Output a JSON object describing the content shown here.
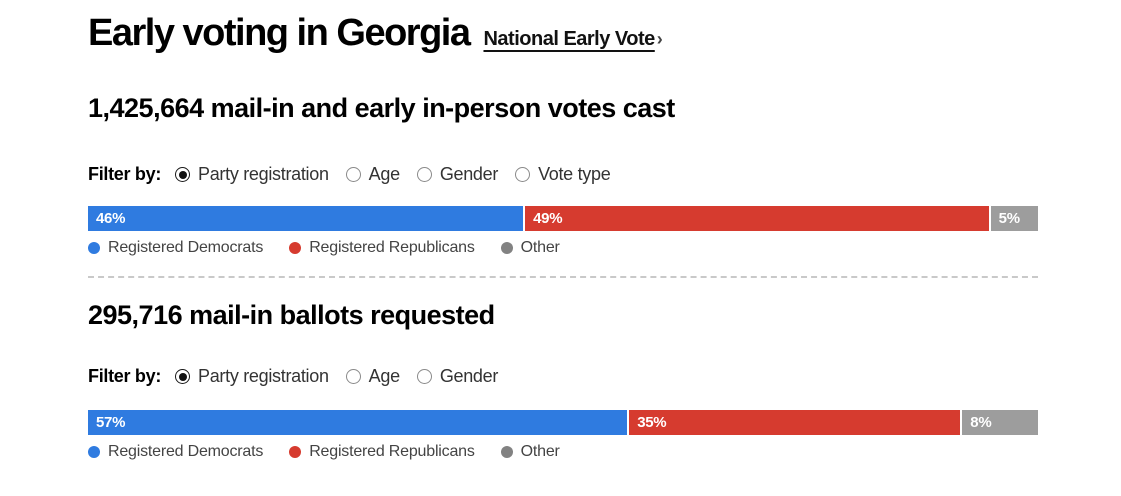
{
  "header": {
    "title": "Early voting in Georgia",
    "link_label": "National Early Vote",
    "link_chevron": "›"
  },
  "colors": {
    "democrat": "#2f7be0",
    "republican": "#d63b2f",
    "other_bar": "#9d9d9d",
    "other_dot": "#828282"
  },
  "sections": [
    {
      "heading": "1,425,664 mail-in and early in-person votes cast",
      "filter": {
        "label": "Filter by:",
        "options": [
          {
            "label": "Party registration",
            "selected": true
          },
          {
            "label": "Age",
            "selected": false
          },
          {
            "label": "Gender",
            "selected": false
          },
          {
            "label": "Vote type",
            "selected": false
          }
        ]
      },
      "bar": {
        "segments": [
          {
            "name": "registered-democrats",
            "label": "46%",
            "value": 46,
            "color": "#2f7be0"
          },
          {
            "name": "registered-republicans",
            "label": "49%",
            "value": 49,
            "color": "#d63b2f"
          },
          {
            "name": "other",
            "label": "5%",
            "value": 5,
            "color": "#9d9d9d"
          }
        ]
      },
      "legend": [
        {
          "label": "Registered Democrats",
          "color": "#2f7be0"
        },
        {
          "label": "Registered Republicans",
          "color": "#d63b2f"
        },
        {
          "label": "Other",
          "color": "#828282"
        }
      ]
    },
    {
      "heading": "295,716 mail-in ballots requested",
      "filter": {
        "label": "Filter by:",
        "options": [
          {
            "label": "Party registration",
            "selected": true
          },
          {
            "label": "Age",
            "selected": false
          },
          {
            "label": "Gender",
            "selected": false
          }
        ]
      },
      "bar": {
        "segments": [
          {
            "name": "registered-democrats",
            "label": "57%",
            "value": 57,
            "color": "#2f7be0"
          },
          {
            "name": "registered-republicans",
            "label": "35%",
            "value": 35,
            "color": "#d63b2f"
          },
          {
            "name": "other",
            "label": "8%",
            "value": 8,
            "color": "#9d9d9d"
          }
        ]
      },
      "legend": [
        {
          "label": "Registered Democrats",
          "color": "#2f7be0"
        },
        {
          "label": "Registered Republicans",
          "color": "#d63b2f"
        },
        {
          "label": "Other",
          "color": "#828282"
        }
      ]
    }
  ],
  "chart_data": [
    {
      "type": "bar",
      "stacked": true,
      "orientation": "horizontal",
      "title": "1,425,664 mail-in and early in-person votes cast",
      "categories": [
        "Registered Democrats",
        "Registered Republicans",
        "Other"
      ],
      "values": [
        46,
        49,
        5
      ],
      "unit": "%",
      "xlim": [
        0,
        100
      ],
      "colors": [
        "#2f7be0",
        "#d63b2f",
        "#9d9d9d"
      ],
      "legend_position": "bottom",
      "grid": false
    },
    {
      "type": "bar",
      "stacked": true,
      "orientation": "horizontal",
      "title": "295,716 mail-in ballots requested",
      "categories": [
        "Registered Democrats",
        "Registered Republicans",
        "Other"
      ],
      "values": [
        57,
        35,
        8
      ],
      "unit": "%",
      "xlim": [
        0,
        100
      ],
      "colors": [
        "#2f7be0",
        "#d63b2f",
        "#9d9d9d"
      ],
      "legend_position": "bottom",
      "grid": false
    }
  ]
}
